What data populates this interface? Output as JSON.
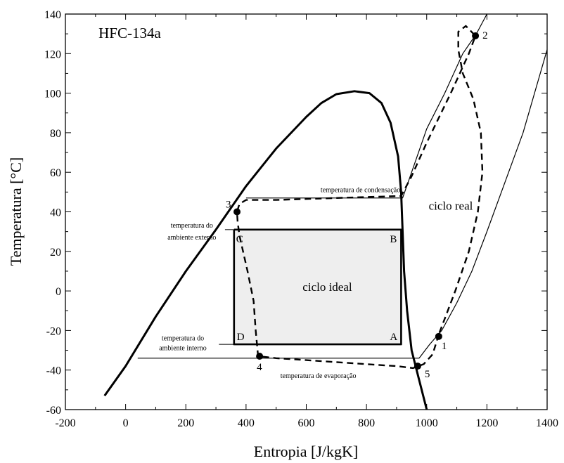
{
  "chart_data": {
    "type": "line",
    "title": "",
    "xlabel": "Entropia [J/kgK]",
    "ylabel": "Temperatura [°C]",
    "xlim": [
      -200,
      1400
    ],
    "ylim": [
      -60,
      140
    ],
    "xticks": [
      -200,
      0,
      200,
      400,
      600,
      800,
      1000,
      1200,
      1400
    ],
    "yticks": [
      -60,
      -40,
      -20,
      0,
      20,
      40,
      60,
      80,
      100,
      120,
      140
    ],
    "x_tick_labels": [
      "-200",
      "0",
      "200",
      "400",
      "600",
      "800",
      "1000",
      "1200",
      "1400"
    ],
    "y_tick_labels": [
      "-60",
      "-40",
      "-20",
      "0",
      "20",
      "40",
      "60",
      "80",
      "100",
      "120",
      "140"
    ],
    "grid": false,
    "series": [
      {
        "role": "saturation-dome",
        "points": [
          [
            -70,
            -53
          ],
          [
            0,
            -38
          ],
          [
            100,
            -13
          ],
          [
            200,
            10
          ],
          [
            300,
            31
          ],
          [
            400,
            53
          ],
          [
            500,
            72
          ],
          [
            600,
            88
          ],
          [
            650,
            95
          ],
          [
            700,
            99.5
          ],
          [
            760,
            101
          ],
          [
            810,
            100
          ],
          [
            850,
            95
          ],
          [
            880,
            85
          ],
          [
            905,
            68
          ],
          [
            915,
            50
          ],
          [
            920,
            30
          ],
          [
            925,
            10
          ],
          [
            935,
            -10
          ],
          [
            950,
            -30
          ],
          [
            975,
            -45
          ],
          [
            1000,
            -60
          ]
        ]
      },
      {
        "role": "isobar-high",
        "points": [
          [
            400,
            47
          ],
          [
            920,
            47
          ],
          [
            950,
            60
          ],
          [
            1000,
            82
          ],
          [
            1060,
            100
          ],
          [
            1120,
            120
          ],
          [
            1165,
            130
          ],
          [
            1200,
            140
          ]
        ]
      },
      {
        "role": "isobar-low",
        "points": [
          [
            40,
            -34
          ],
          [
            975,
            -34
          ],
          [
            1010,
            -27
          ],
          [
            1050,
            -20
          ],
          [
            1100,
            -6
          ],
          [
            1150,
            10
          ],
          [
            1200,
            30
          ],
          [
            1260,
            55
          ],
          [
            1320,
            80
          ],
          [
            1400,
            122
          ]
        ]
      },
      {
        "role": "ideal-cycle",
        "points": [
          [
            360,
            31
          ],
          [
            915,
            31
          ],
          [
            915,
            -27
          ],
          [
            360,
            -27
          ],
          [
            360,
            31
          ]
        ]
      },
      {
        "role": "real-cycle",
        "dashed": true,
        "points": [
          [
            1040,
            -22
          ],
          [
            1020,
            -32
          ],
          [
            990,
            -37
          ],
          [
            955,
            -39
          ],
          [
            900,
            -38
          ],
          [
            800,
            -37
          ],
          [
            700,
            -36
          ],
          [
            600,
            -35
          ],
          [
            500,
            -34
          ],
          [
            440,
            -33
          ],
          [
            432,
            -20
          ],
          [
            425,
            -5
          ],
          [
            405,
            10
          ],
          [
            378,
            28
          ],
          [
            372,
            35
          ],
          [
            370,
            40
          ],
          [
            378,
            44
          ],
          [
            400,
            46
          ],
          [
            500,
            46
          ],
          [
            600,
            46.5
          ],
          [
            700,
            47
          ],
          [
            800,
            47.5
          ],
          [
            915,
            48
          ],
          [
            950,
            58
          ],
          [
            1000,
            75
          ],
          [
            1080,
            100
          ],
          [
            1140,
            120
          ],
          [
            1162,
            129
          ],
          [
            1130,
            134
          ],
          [
            1105,
            131
          ],
          [
            1105,
            122
          ],
          [
            1120,
            110
          ],
          [
            1155,
            97
          ],
          [
            1180,
            80
          ],
          [
            1185,
            60
          ],
          [
            1170,
            40
          ],
          [
            1140,
            20
          ],
          [
            1095,
            0
          ],
          [
            1065,
            -12
          ],
          [
            1040,
            -22
          ]
        ]
      }
    ],
    "points": [
      {
        "label": "1",
        "x": 1040,
        "y": -23
      },
      {
        "label": "2",
        "x": 1162,
        "y": 129
      },
      {
        "label": "3",
        "x": 370,
        "y": 40
      },
      {
        "label": "4",
        "x": 445,
        "y": -33
      },
      {
        "label": "5",
        "x": 970,
        "y": -38
      }
    ],
    "corner_labels": [
      {
        "label": "A",
        "x": 915,
        "y": -27
      },
      {
        "label": "B",
        "x": 915,
        "y": 31
      },
      {
        "label": "C",
        "x": 360,
        "y": 31
      },
      {
        "label": "D",
        "x": 360,
        "y": -27
      }
    ],
    "annotations": [
      {
        "text": "HFC-134a",
        "x": -90,
        "y": 128
      },
      {
        "text": "temperatura de condensação",
        "x": 780,
        "y": 50
      },
      {
        "text": "temperatura de evaporação",
        "x": 640,
        "y": -44
      },
      {
        "text": "ciclo real",
        "x": 1080,
        "y": 41
      },
      {
        "text": "ciclo ideal",
        "x": 670,
        "y": 0
      },
      {
        "text": "temperatura do",
        "x": 220,
        "y": 32
      },
      {
        "text": "ambiente externo",
        "x": 220,
        "y": 26
      },
      {
        "text": "temperatura do",
        "x": 190,
        "y": -25
      },
      {
        "text": "ambiente interno",
        "x": 190,
        "y": -30
      }
    ],
    "ideal_region_fill": "#eeeeee"
  }
}
